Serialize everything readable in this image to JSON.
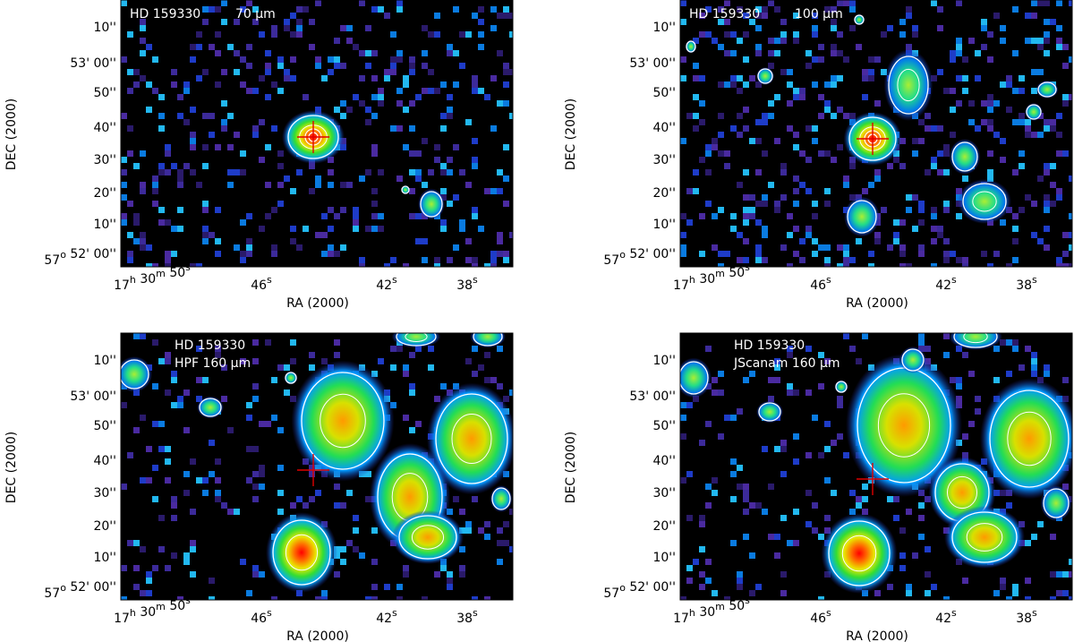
{
  "panels": [
    {
      "title": "HD 159330",
      "band": "70 μm",
      "y_ticks": [
        [
          {
            "text": "10''"
          }
        ],
        [
          {
            "text": "53' 00''"
          }
        ],
        [
          {
            "text": "50''"
          }
        ],
        [
          {
            "text": "40''"
          }
        ],
        [
          {
            "text": "30''"
          }
        ],
        [
          {
            "text": "20''"
          }
        ],
        [
          {
            "text": "10''"
          }
        ],
        [
          {
            "text": "57",
            "sup": "o"
          },
          {
            "text": " 52' 00''"
          }
        ]
      ],
      "x_ticks": [
        [
          {
            "text": "17",
            "sup": "h"
          },
          {
            "text": " 30",
            "sup": "m"
          },
          {
            "text": " 50",
            "sup": "s"
          }
        ],
        [
          {
            "text": "46",
            "sup": "s"
          }
        ],
        [
          {
            "text": "42",
            "sup": "s"
          }
        ],
        [
          {
            "text": "38",
            "sup": "s"
          }
        ]
      ],
      "x_label": "RA (2000)",
      "y_label": "DEC (2000)"
    },
    {
      "title": "HD 159330",
      "band": "100 μm",
      "y_ticks": [
        [
          {
            "text": "10''"
          }
        ],
        [
          {
            "text": "53' 00''"
          }
        ],
        [
          {
            "text": "50''"
          }
        ],
        [
          {
            "text": "40''"
          }
        ],
        [
          {
            "text": "30''"
          }
        ],
        [
          {
            "text": "20''"
          }
        ],
        [
          {
            "text": "10''"
          }
        ],
        [
          {
            "text": "57",
            "sup": "o"
          },
          {
            "text": " 52' 00''"
          }
        ]
      ],
      "x_ticks": [
        [
          {
            "text": "17",
            "sup": "h"
          },
          {
            "text": " 30",
            "sup": "m"
          },
          {
            "text": " 50",
            "sup": "s"
          }
        ],
        [
          {
            "text": "46",
            "sup": "s"
          }
        ],
        [
          {
            "text": "42",
            "sup": "s"
          }
        ],
        [
          {
            "text": "38",
            "sup": "s"
          }
        ]
      ],
      "x_label": "RA (2000)",
      "y_label": "DEC (2000)"
    },
    {
      "title": "HD 159330",
      "band": "HPF 160 μm",
      "y_ticks": [
        [
          {
            "text": "10''"
          }
        ],
        [
          {
            "text": "53' 00''"
          }
        ],
        [
          {
            "text": "50''"
          }
        ],
        [
          {
            "text": "40''"
          }
        ],
        [
          {
            "text": "30''"
          }
        ],
        [
          {
            "text": "20''"
          }
        ],
        [
          {
            "text": "10''"
          }
        ],
        [
          {
            "text": "57",
            "sup": "o"
          },
          {
            "text": " 52' 00''"
          }
        ]
      ],
      "x_ticks": [
        [
          {
            "text": "17",
            "sup": "h"
          },
          {
            "text": " 30",
            "sup": "m"
          },
          {
            "text": " 50",
            "sup": "s"
          }
        ],
        [
          {
            "text": "46",
            "sup": "s"
          }
        ],
        [
          {
            "text": "42",
            "sup": "s"
          }
        ],
        [
          {
            "text": "38",
            "sup": "s"
          }
        ]
      ],
      "x_label": "RA (2000)",
      "y_label": "DEC (2000)"
    },
    {
      "title": "HD 159330",
      "band": "JScanam 160 μm",
      "y_ticks": [
        [
          {
            "text": "10''"
          }
        ],
        [
          {
            "text": "53' 00''"
          }
        ],
        [
          {
            "text": "50''"
          }
        ],
        [
          {
            "text": "40''"
          }
        ],
        [
          {
            "text": "30''"
          }
        ],
        [
          {
            "text": "20''"
          }
        ],
        [
          {
            "text": "10''"
          }
        ],
        [
          {
            "text": "57",
            "sup": "o"
          },
          {
            "text": " 52' 00''"
          }
        ]
      ],
      "x_ticks": [
        [
          {
            "text": "17",
            "sup": "h"
          },
          {
            "text": " 30",
            "sup": "m"
          },
          {
            "text": " 50",
            "sup": "s"
          }
        ],
        [
          {
            "text": "46",
            "sup": "s"
          }
        ],
        [
          {
            "text": "42",
            "sup": "s"
          }
        ],
        [
          {
            "text": "38",
            "sup": "s"
          }
        ]
      ],
      "x_label": "RA (2000)",
      "y_label": "DEC (2000)"
    }
  ]
}
